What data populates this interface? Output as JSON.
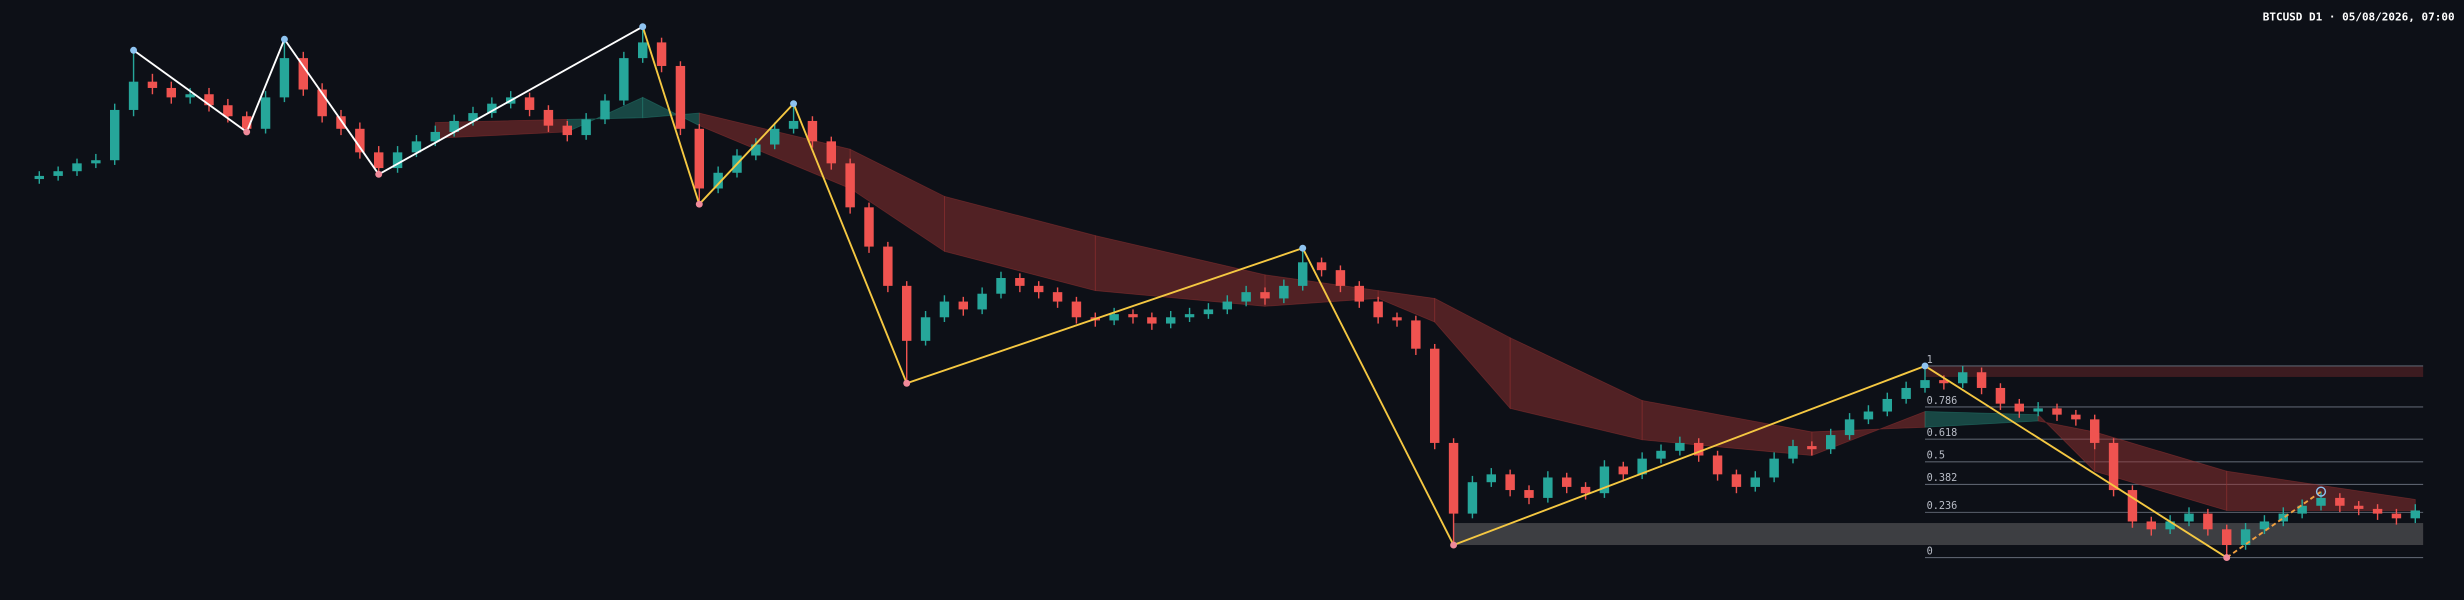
{
  "chart_data": {
    "type": "candlestick",
    "title": "BTCUSD D1 · 05/08/2026, 07:00",
    "ylim": [
      0,
      382
    ],
    "up_color": "#26a69a",
    "down_color": "#ef5350",
    "candles": [
      [
        268,
        273,
        265,
        270
      ],
      [
        270,
        276,
        267,
        273
      ],
      [
        273,
        281,
        270,
        278
      ],
      [
        278,
        284,
        275,
        280
      ],
      [
        280,
        316,
        277,
        312
      ],
      [
        312,
        350,
        308,
        330
      ],
      [
        330,
        335,
        322,
        326
      ],
      [
        326,
        330,
        316,
        320
      ],
      [
        320,
        326,
        316,
        322
      ],
      [
        322,
        326,
        311,
        315
      ],
      [
        315,
        319,
        304,
        308
      ],
      [
        308,
        311,
        298,
        300
      ],
      [
        300,
        324,
        297,
        320
      ],
      [
        320,
        357,
        317,
        345
      ],
      [
        345,
        349,
        321,
        325
      ],
      [
        325,
        329,
        304,
        308
      ],
      [
        308,
        312,
        296,
        300
      ],
      [
        300,
        304,
        281,
        285
      ],
      [
        285,
        289,
        271,
        275
      ],
      [
        275,
        289,
        272,
        285
      ],
      [
        285,
        296,
        282,
        292
      ],
      [
        292,
        302,
        289,
        298
      ],
      [
        298,
        309,
        295,
        305
      ],
      [
        305,
        314,
        302,
        310
      ],
      [
        310,
        320,
        307,
        316
      ],
      [
        316,
        324,
        313,
        320
      ],
      [
        320,
        323,
        308,
        312
      ],
      [
        312,
        315,
        298,
        302
      ],
      [
        302,
        305,
        292,
        296
      ],
      [
        296,
        310,
        293,
        306
      ],
      [
        306,
        322,
        303,
        318
      ],
      [
        318,
        349,
        315,
        345
      ],
      [
        345,
        365,
        342,
        355
      ],
      [
        355,
        358,
        336,
        340
      ],
      [
        340,
        343,
        296,
        300
      ],
      [
        300,
        303,
        252,
        262
      ],
      [
        262,
        276,
        259,
        272
      ],
      [
        272,
        287,
        269,
        283
      ],
      [
        283,
        294,
        280,
        290
      ],
      [
        290,
        304,
        287,
        300
      ],
      [
        300,
        316,
        297,
        305
      ],
      [
        305,
        308,
        288,
        292
      ],
      [
        292,
        295,
        274,
        278
      ],
      [
        278,
        281,
        246,
        250
      ],
      [
        250,
        253,
        221,
        225
      ],
      [
        225,
        228,
        196,
        200
      ],
      [
        200,
        203,
        138,
        165
      ],
      [
        165,
        184,
        162,
        180
      ],
      [
        180,
        194,
        177,
        190
      ],
      [
        190,
        193,
        181,
        185
      ],
      [
        185,
        199,
        182,
        195
      ],
      [
        195,
        209,
        192,
        205
      ],
      [
        205,
        208,
        196,
        200
      ],
      [
        200,
        203,
        192,
        196
      ],
      [
        196,
        199,
        186,
        190
      ],
      [
        190,
        193,
        176,
        180
      ],
      [
        180,
        183,
        174,
        178
      ],
      [
        178,
        186,
        175,
        182
      ],
      [
        182,
        185,
        176,
        180
      ],
      [
        180,
        183,
        172,
        176
      ],
      [
        176,
        184,
        173,
        180
      ],
      [
        180,
        186,
        177,
        182
      ],
      [
        182,
        189,
        179,
        185
      ],
      [
        185,
        194,
        182,
        190
      ],
      [
        190,
        200,
        187,
        196
      ],
      [
        196,
        199,
        188,
        192
      ],
      [
        192,
        204,
        189,
        200
      ],
      [
        200,
        224,
        197,
        215
      ],
      [
        215,
        218,
        206,
        210
      ],
      [
        210,
        213,
        196,
        200
      ],
      [
        200,
        203,
        186,
        190
      ],
      [
        190,
        193,
        176,
        180
      ],
      [
        180,
        183,
        174,
        178
      ],
      [
        178,
        181,
        156,
        160
      ],
      [
        160,
        163,
        96,
        100
      ],
      [
        100,
        103,
        35,
        55
      ],
      [
        55,
        79,
        52,
        75
      ],
      [
        75,
        84,
        72,
        80
      ],
      [
        80,
        83,
        66,
        70
      ],
      [
        70,
        73,
        61,
        65
      ],
      [
        65,
        82,
        62,
        78
      ],
      [
        78,
        81,
        68,
        72
      ],
      [
        72,
        75,
        64,
        68
      ],
      [
        68,
        89,
        65,
        85
      ],
      [
        85,
        88,
        76,
        80
      ],
      [
        80,
        94,
        77,
        90
      ],
      [
        90,
        99,
        87,
        95
      ],
      [
        95,
        104,
        92,
        100
      ],
      [
        100,
        103,
        88,
        92
      ],
      [
        92,
        95,
        76,
        80
      ],
      [
        80,
        83,
        68,
        72
      ],
      [
        72,
        82,
        69,
        78
      ],
      [
        78,
        94,
        75,
        90
      ],
      [
        90,
        102,
        87,
        98
      ],
      [
        98,
        101,
        92,
        96
      ],
      [
        96,
        109,
        93,
        105
      ],
      [
        105,
        119,
        102,
        115
      ],
      [
        115,
        124,
        112,
        120
      ],
      [
        120,
        132,
        117,
        128
      ],
      [
        128,
        139,
        125,
        135
      ],
      [
        135,
        149,
        132,
        140
      ],
      [
        140,
        143,
        134,
        138
      ],
      [
        138,
        149,
        135,
        145
      ],
      [
        145,
        148,
        131,
        135
      ],
      [
        135,
        138,
        121,
        125
      ],
      [
        125,
        128,
        116,
        120
      ],
      [
        120,
        126,
        117,
        122
      ],
      [
        122,
        125,
        114,
        118
      ],
      [
        118,
        121,
        111,
        115
      ],
      [
        115,
        118,
        96,
        100
      ],
      [
        100,
        103,
        66,
        70
      ],
      [
        70,
        73,
        46,
        50
      ],
      [
        50,
        53,
        41,
        45
      ],
      [
        45,
        54,
        42,
        50
      ],
      [
        50,
        59,
        47,
        55
      ],
      [
        55,
        58,
        41,
        45
      ],
      [
        45,
        48,
        27,
        35
      ],
      [
        35,
        49,
        32,
        45
      ],
      [
        45,
        54,
        42,
        50
      ],
      [
        50,
        59,
        47,
        55
      ],
      [
        55,
        64,
        52,
        60
      ],
      [
        60,
        69,
        57,
        65
      ],
      [
        65,
        68,
        56,
        60
      ],
      [
        60,
        63,
        54,
        58
      ],
      [
        58,
        61,
        51,
        55
      ],
      [
        55,
        58,
        48,
        52
      ],
      [
        52,
        61,
        49,
        57
      ]
    ],
    "ribbon": {
      "index": [
        21,
        28,
        32,
        35,
        43,
        48,
        56,
        65,
        71,
        74,
        78,
        85,
        94,
        100,
        106,
        109,
        116,
        126
      ],
      "fast": [
        294,
        298,
        320,
        302,
        262,
        222,
        197,
        187,
        192,
        177,
        122,
        102,
        92,
        120,
        118,
        82,
        57,
        57
      ],
      "slow": [
        304,
        306,
        307,
        310,
        287,
        257,
        232,
        207,
        197,
        192,
        167,
        127,
        107,
        110,
        114,
        107,
        82,
        64
      ],
      "up_color": "rgba(38,140,125,0.45)",
      "down_color": "rgba(150,50,50,0.5)"
    },
    "zigzag": {
      "points": [
        [
          5,
          350
        ],
        [
          11,
          298
        ],
        [
          13,
          357
        ],
        [
          18,
          271
        ],
        [
          32,
          365
        ],
        [
          35,
          252
        ],
        [
          40,
          316
        ],
        [
          46,
          138
        ],
        [
          67,
          224
        ],
        [
          75,
          35
        ],
        [
          100,
          149
        ],
        [
          116,
          27
        ],
        [
          121,
          69
        ]
      ],
      "color": "#ffffff",
      "alt_color": "#f5c842",
      "alt_from": 4,
      "last_color": "#f0a040",
      "high_color": "#8ec3f0",
      "low_color": "#f08a9a"
    },
    "zone": [
      35,
      49
    ],
    "fib": {
      "from": 10,
      "to": 11,
      "levels": [
        1,
        0.786,
        0.618,
        0.5,
        0.382,
        0.236,
        0
      ]
    }
  }
}
